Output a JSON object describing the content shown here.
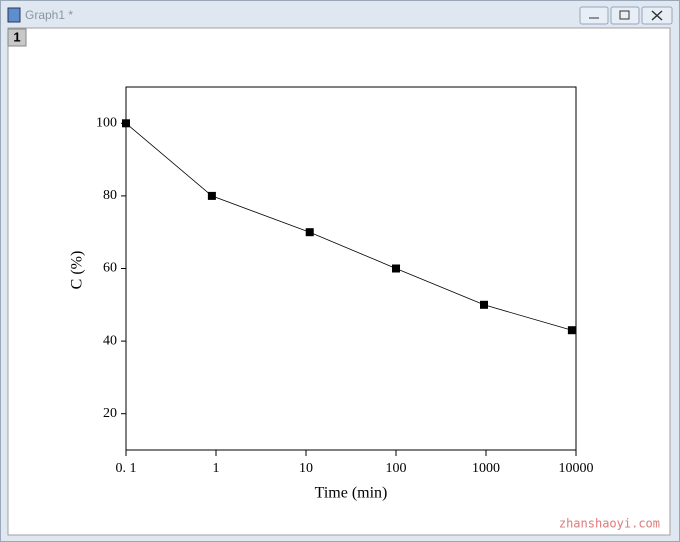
{
  "window": {
    "title": "Graph1 *",
    "layer": "1"
  },
  "watermark": "zhanshaoyi.com",
  "chart_data": {
    "type": "line",
    "x_label": "Time (min)",
    "y_label": "C (%)",
    "x_scale": "log",
    "x": [
      0.1,
      0.9,
      11,
      100,
      950,
      9000
    ],
    "series": [
      {
        "color": "#000000",
        "values": [
          100,
          80,
          70,
          60,
          50,
          43
        ]
      }
    ],
    "xlim": [
      0.1,
      10000
    ],
    "xticks": [
      {
        "value": 0.1,
        "label": "0. 1"
      },
      1,
      10,
      100,
      1000,
      10000
    ],
    "ylim": [
      10,
      110
    ],
    "yticks": [
      20,
      40,
      60,
      80,
      100
    ]
  }
}
